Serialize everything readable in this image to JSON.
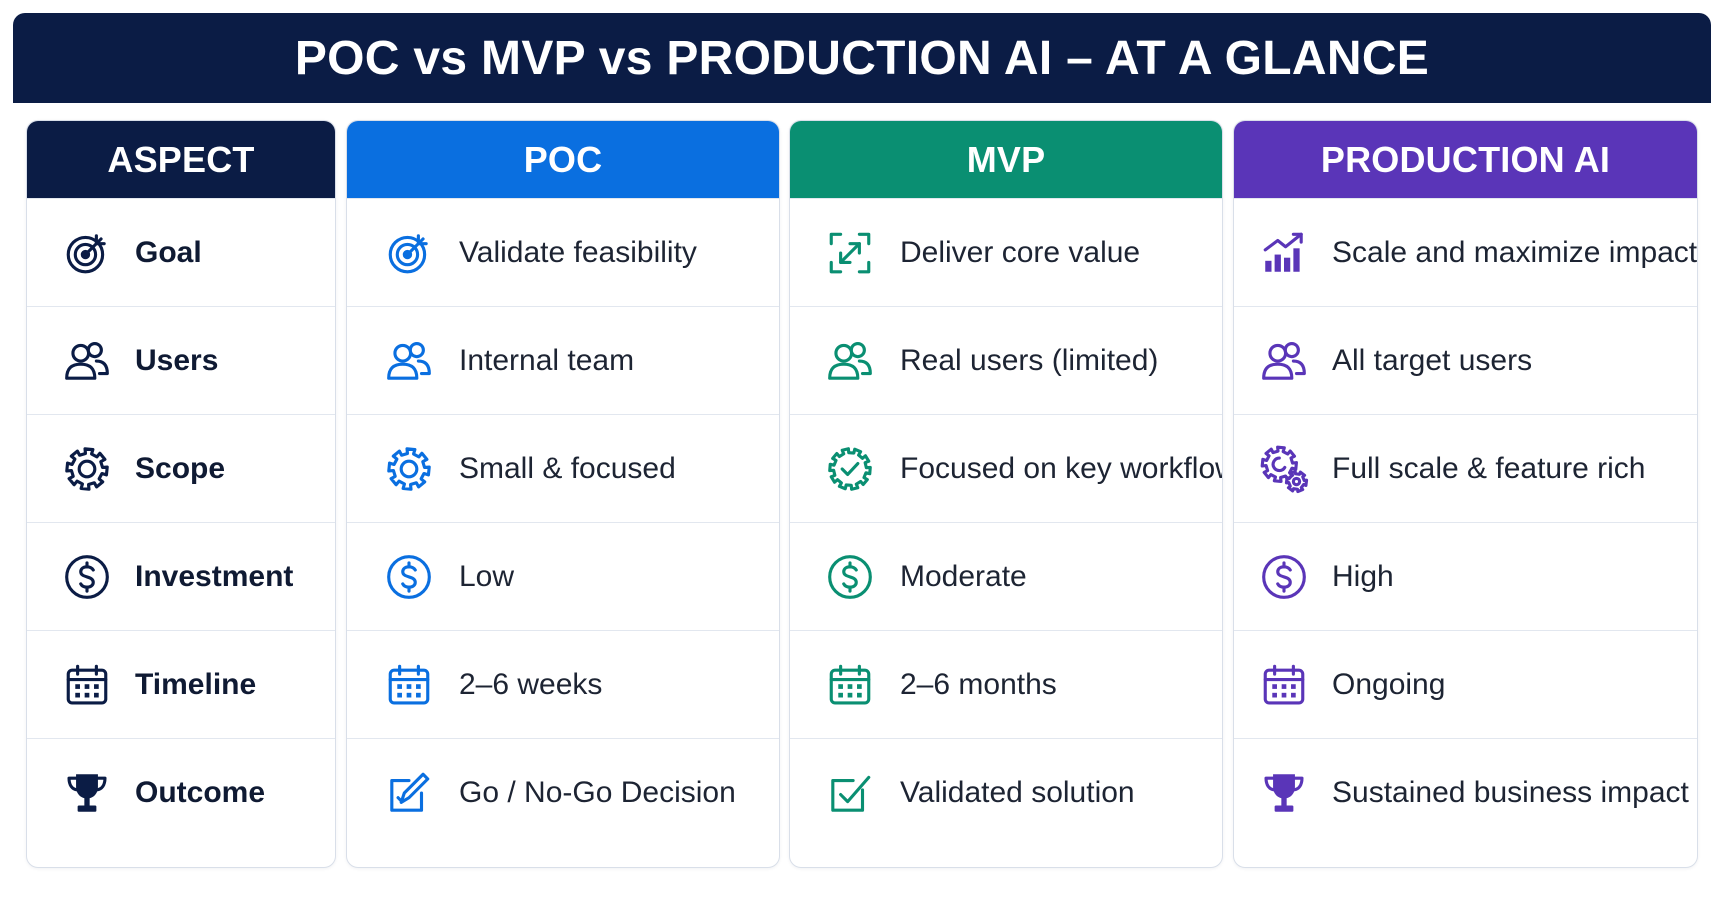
{
  "title": "POC vs MVP vs PRODUCTION AI – AT A GLANCE",
  "colors": {
    "navy": "#0b1c45",
    "poc": "#0a6fe0",
    "mvp": "#0a8f72",
    "production": "#5a35b8"
  },
  "columns": {
    "aspect": {
      "header": "ASPECT",
      "rows": [
        {
          "label": "Goal",
          "icon": "target-icon"
        },
        {
          "label": "Users",
          "icon": "users-icon"
        },
        {
          "label": "Scope",
          "icon": "gear-icon"
        },
        {
          "label": "Investment",
          "icon": "dollar-icon"
        },
        {
          "label": "Timeline",
          "icon": "calendar-icon"
        },
        {
          "label": "Outcome",
          "icon": "trophy-icon"
        }
      ]
    },
    "poc": {
      "header": "POC",
      "rows": [
        {
          "label": "Validate feasibility",
          "icon": "target-icon"
        },
        {
          "label": "Internal team",
          "icon": "users-icon"
        },
        {
          "label": "Small & focused",
          "icon": "gear-icon"
        },
        {
          "label": "Low",
          "icon": "dollar-icon"
        },
        {
          "label": "2–6 weeks",
          "icon": "calendar-icon"
        },
        {
          "label": "Go / No-Go Decision",
          "icon": "pen-check-icon"
        }
      ]
    },
    "mvp": {
      "header": "MVP",
      "rows": [
        {
          "label": "Deliver core value",
          "icon": "expand-arrows-icon"
        },
        {
          "label": "Real users (limited)",
          "icon": "users-icon"
        },
        {
          "label": "Focused on key workflow",
          "icon": "check-gear-icon"
        },
        {
          "label": "Moderate",
          "icon": "dollar-icon"
        },
        {
          "label": "2–6 months",
          "icon": "calendar-icon"
        },
        {
          "label": "Validated solution",
          "icon": "checkbox-icon"
        }
      ]
    },
    "production": {
      "header": "PRODUCTION AI",
      "rows": [
        {
          "label": "Scale and maximize impact",
          "icon": "growth-chart-icon"
        },
        {
          "label": "All target users",
          "icon": "users-icon"
        },
        {
          "label": "Full scale & feature rich",
          "icon": "gears-icon"
        },
        {
          "label": "High",
          "icon": "dollar-icon"
        },
        {
          "label": "Ongoing",
          "icon": "calendar-icon"
        },
        {
          "label": "Sustained business impact",
          "icon": "trophy-icon"
        }
      ]
    }
  }
}
